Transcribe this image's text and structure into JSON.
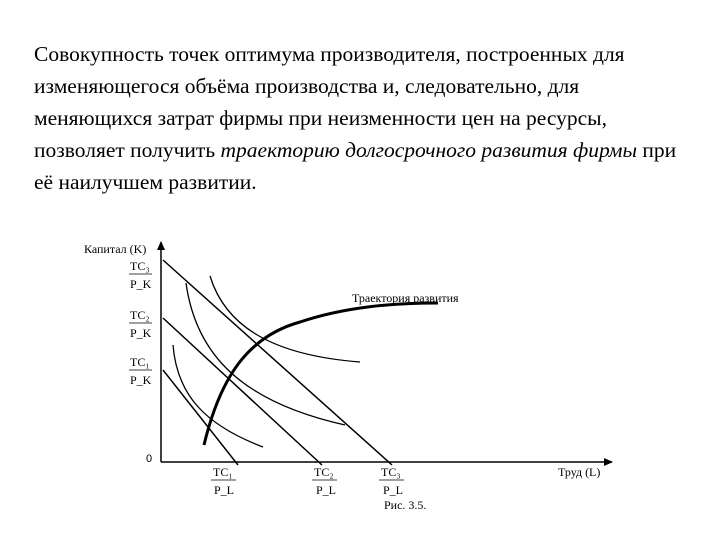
{
  "text": {
    "p1": "Совокупность точек оптимума производителя, построенных для изменяющегося объёма производства и, следовательно, для меняющихся затрат фирмы при неизменности цен на ресурсы, позволяет получить ",
    "p1_em": "траекторию долгосрочного развития фирмы",
    "p1_end": " при её наилучшем развитии."
  },
  "diagram": {
    "y_axis_label": "Капитал (K)",
    "x_axis_label": "Труд (L)",
    "origin_label": "0",
    "curve_label": "Траектория развития",
    "caption": "Рис. 3.5.",
    "y_intercepts": [
      {
        "num": "TC₃",
        "den": "P_K"
      },
      {
        "num": "TC₂",
        "den": "P_K"
      },
      {
        "num": "TC₁",
        "den": "P_K"
      }
    ],
    "x_intercepts": [
      {
        "num": "TC₁",
        "den": "P_L"
      },
      {
        "num": "TC₂",
        "den": "P_L"
      },
      {
        "num": "TC₃",
        "den": "P_L"
      }
    ]
  }
}
